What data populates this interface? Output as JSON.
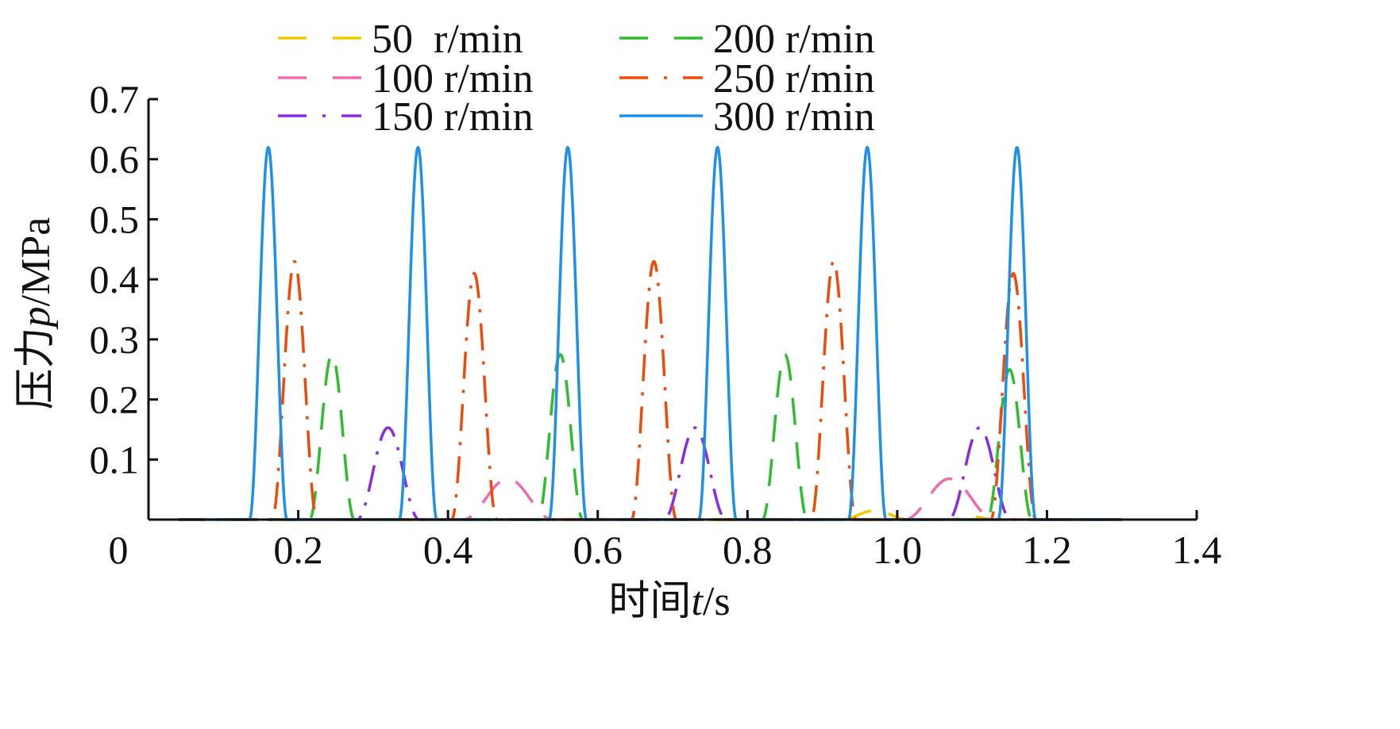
{
  "chart_data": {
    "type": "line",
    "title": "",
    "xlabel": {
      "prefix": "时间",
      "var": "t",
      "suffix": "/s"
    },
    "ylabel": {
      "prefix": "压力",
      "var": "p",
      "suffix": "/MPa"
    },
    "xlim": [
      0,
      1.4
    ],
    "ylim": [
      0,
      0.7
    ],
    "x_ticks": [
      0,
      0.2,
      0.4,
      0.6,
      0.8,
      1.0,
      1.2,
      1.4
    ],
    "x_tick_labels": [
      "0",
      "0.2",
      "0.4",
      "0.6",
      "0.8",
      "1.0",
      "1.2",
      "1.4"
    ],
    "y_ticks": [
      0.1,
      0.2,
      0.3,
      0.4,
      0.5,
      0.6,
      0.7
    ],
    "y_tick_labels": [
      "0.1",
      "0.2",
      "0.3",
      "0.4",
      "0.5",
      "0.6",
      "0.7"
    ],
    "grid": false,
    "legend_position": "top",
    "series": [
      {
        "name": "50  r/min",
        "color": "#F5C800",
        "dash": "dash",
        "peaks": [
          [
            0.97,
            0.015,
            0.09
          ],
          [
            1.1,
            0.005,
            0.06
          ]
        ]
      },
      {
        "name": "100 r/min",
        "color": "#F06AAE",
        "dash": "dash",
        "peaks": [
          [
            0.48,
            0.068,
            0.12
          ],
          [
            1.07,
            0.068,
            0.12
          ]
        ]
      },
      {
        "name": "150 r/min",
        "color": "#8A2BE2",
        "dash": "dashdot",
        "peaks": [
          [
            0.32,
            0.153,
            0.083
          ],
          [
            0.73,
            0.153,
            0.083
          ],
          [
            1.11,
            0.153,
            0.083
          ]
        ]
      },
      {
        "name": "200 r/min",
        "color": "#2EBD2E",
        "dash": "dash",
        "peaks": [
          [
            0.245,
            0.275,
            0.06
          ],
          [
            0.55,
            0.275,
            0.06
          ],
          [
            0.85,
            0.275,
            0.06
          ],
          [
            1.15,
            0.25,
            0.06
          ]
        ]
      },
      {
        "name": "250 r/min",
        "color": "#F04A0A",
        "dash": "dashdot",
        "peaks": [
          [
            0.195,
            0.43,
            0.06
          ],
          [
            0.435,
            0.41,
            0.06
          ],
          [
            0.675,
            0.43,
            0.06
          ],
          [
            0.915,
            0.43,
            0.06
          ],
          [
            1.155,
            0.41,
            0.06
          ]
        ]
      },
      {
        "name": "300 r/min",
        "color": "#1E90E8",
        "dash": "solid",
        "peaks": [
          [
            0.16,
            0.62,
            0.05
          ],
          [
            0.36,
            0.62,
            0.05
          ],
          [
            0.56,
            0.62,
            0.05
          ],
          [
            0.76,
            0.62,
            0.05
          ],
          [
            0.96,
            0.62,
            0.05
          ],
          [
            1.16,
            0.62,
            0.05
          ]
        ]
      }
    ],
    "series_x_range": [
      0.04,
      1.3
    ]
  }
}
